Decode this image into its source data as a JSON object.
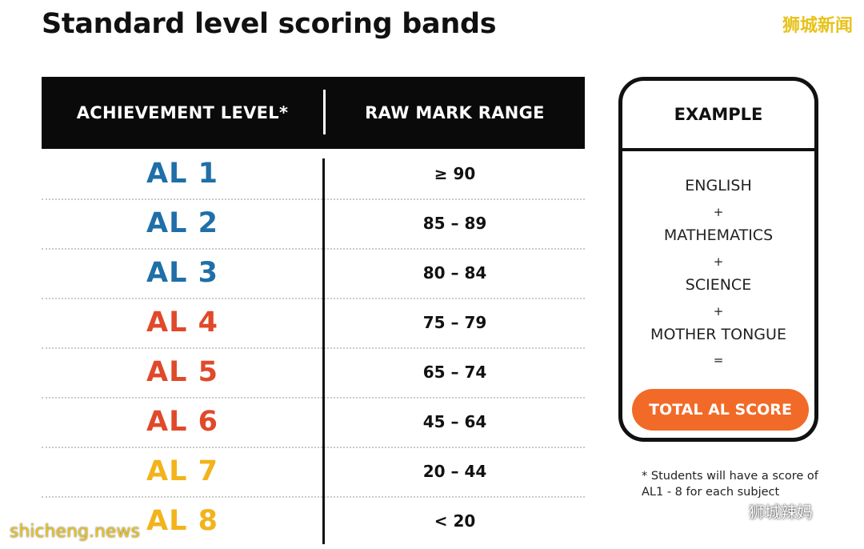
{
  "title": "Standard level scoring bands",
  "watermark_top": "狮城新闻",
  "watermark_bottom_left": "shicheng.news",
  "watermark_bottom_right": "狮城辣妈",
  "table": {
    "header_level": "ACHIEVEMENT LEVEL*",
    "header_range": "RAW MARK RANGE",
    "rows": [
      {
        "level": "AL 1",
        "range": "≥ 90",
        "color": "#1f6fa8"
      },
      {
        "level": "AL 2",
        "range": "85 – 89",
        "color": "#1f6fa8"
      },
      {
        "level": "AL 3",
        "range": "80 – 84",
        "color": "#1f6fa8"
      },
      {
        "level": "AL 4",
        "range": "75 – 79",
        "color": "#e0492a"
      },
      {
        "level": "AL 5",
        "range": "65 – 74",
        "color": "#e0492a"
      },
      {
        "level": "AL 6",
        "range": "45 – 64",
        "color": "#e0492a"
      },
      {
        "level": "AL 7",
        "range": "20 – 44",
        "color": "#f2b31b"
      },
      {
        "level": "AL 8",
        "range": "< 20",
        "color": "#f2b31b"
      }
    ]
  },
  "example": {
    "heading": "EXAMPLE",
    "subjects": [
      "ENGLISH",
      "MATHEMATICS",
      "SCIENCE",
      "MOTHER TONGUE"
    ],
    "plus": "+",
    "equals": "=",
    "total_label": "TOTAL AL SCORE",
    "total_color": "#f26a28"
  },
  "footnote": "* Students will have a score of AL1 - 8 for each subject"
}
